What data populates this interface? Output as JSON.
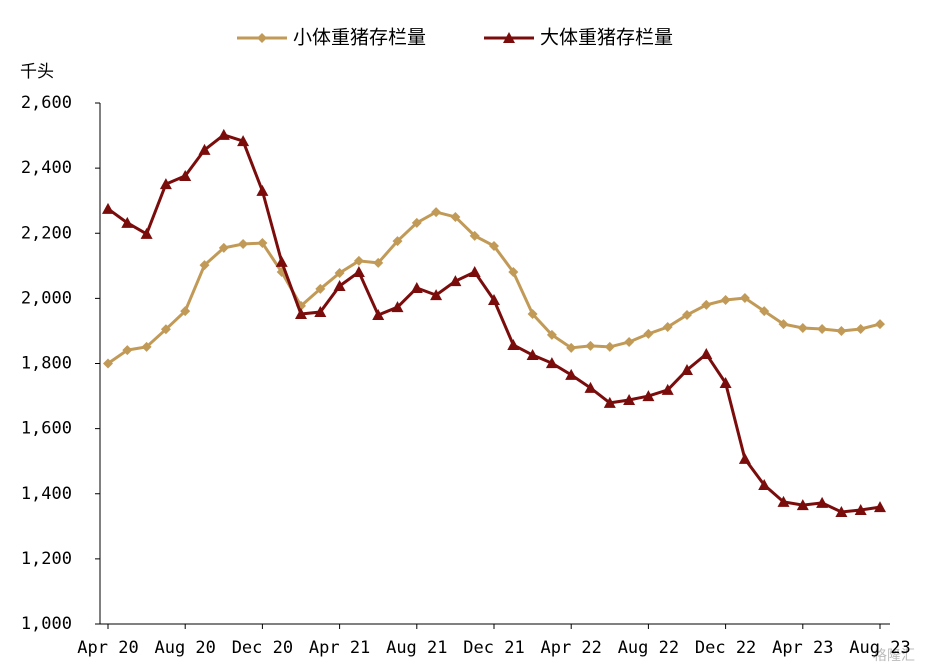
{
  "chart_data": {
    "type": "line",
    "y_unit": "千头",
    "categories": [
      "Apr 20",
      null,
      null,
      null,
      "Aug 20",
      null,
      null,
      null,
      "Dec 20",
      null,
      null,
      null,
      "Apr 21",
      null,
      null,
      null,
      "Aug 21",
      null,
      null,
      null,
      "Dec 21",
      null,
      null,
      null,
      "Apr 22",
      null,
      null,
      null,
      "Aug 22",
      null,
      null,
      null,
      "Dec 22",
      null,
      null,
      null,
      "Apr 23",
      null,
      null,
      null,
      "Aug 23"
    ],
    "series": [
      {
        "name": "小体重猪存栏量",
        "color": "#c29a57",
        "marker": "diamond",
        "values": [
          1800,
          1841,
          1851,
          1905,
          1961,
          2102,
          2155,
          2167,
          2170,
          2081,
          1977,
          2029,
          2078,
          2115,
          2109,
          2176,
          2232,
          2265,
          2250,
          2192,
          2161,
          2081,
          1952,
          1888,
          1848,
          1854,
          1851,
          1866,
          1891,
          1912,
          1949,
          1980,
          1995,
          2001,
          1961,
          1921,
          1909,
          1906,
          1900,
          1906,
          1921
        ]
      },
      {
        "name": "大体重猪存栏量",
        "color": "#7b0c0c",
        "marker": "triangle",
        "values": [
          2275,
          2232,
          2198,
          2351,
          2376,
          2456,
          2502,
          2483,
          2330,
          2112,
          1952,
          1958,
          2038,
          2081,
          1949,
          1973,
          2032,
          2010,
          2053,
          2081,
          1995,
          1857,
          1826,
          1801,
          1765,
          1725,
          1679,
          1688,
          1700,
          1719,
          1780,
          1829,
          1740,
          1507,
          1427,
          1375,
          1365,
          1372,
          1344,
          1350,
          1359
        ]
      }
    ],
    "ylim": [
      1000,
      2600
    ],
    "yticks": [
      {
        "value": 1000,
        "label": "1,000"
      },
      {
        "value": 1200,
        "label": "1,200"
      },
      {
        "value": 1400,
        "label": "1,400"
      },
      {
        "value": 1600,
        "label": "1,600"
      },
      {
        "value": 1800,
        "label": "1,800"
      },
      {
        "value": 2000,
        "label": "2,000"
      },
      {
        "value": 2200,
        "label": "2,200"
      },
      {
        "value": 2400,
        "label": "2,400"
      },
      {
        "value": 2600,
        "label": "2,600"
      }
    ],
    "legend": "top",
    "grid": false,
    "watermark": "格隆汇"
  }
}
